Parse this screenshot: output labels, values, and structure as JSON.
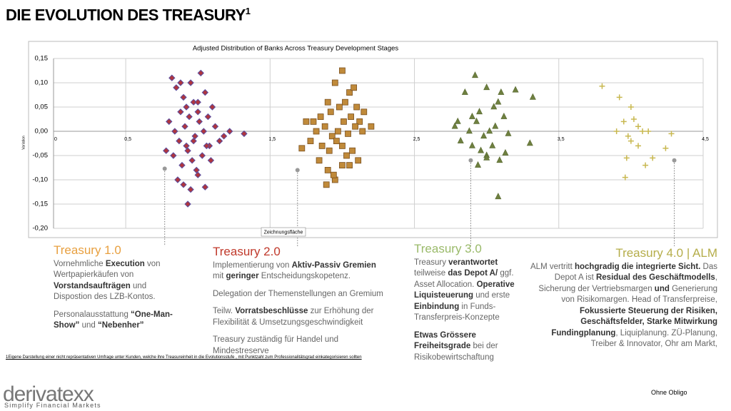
{
  "slide_title": "DIE EVOLUTION DES TREASURY",
  "title_sup": "1",
  "chart_data": {
    "type": "scatter",
    "title": "Adjusted Distribution of Banks Across Treasury Development Stages",
    "y_label": "Variation",
    "tooltip": "Zeichnungsfläche",
    "xlim": [
      0,
      4.5
    ],
    "ylim": [
      -0.2,
      0.15
    ],
    "xticks": [
      0,
      {
        "value": 0.5,
        "label": "0,5"
      },
      {
        "value": 1.5,
        "label": "1,5"
      },
      {
        "value": 2.5,
        "label": "2,5"
      },
      {
        "value": 3.5,
        "label": "3,5"
      },
      {
        "value": 4.5,
        "label": "4,5"
      }
    ],
    "yticks": [
      {
        "value": 0.15,
        "label": "0,15"
      },
      {
        "value": 0.1,
        "label": "0,10"
      },
      {
        "value": 0.05,
        "label": "0,05"
      },
      {
        "value": 0,
        "label": "0,00"
      },
      {
        "value": -0.05,
        "label": "-0,05"
      },
      {
        "value": -0.1,
        "label": "-0,10"
      },
      {
        "value": -0.15,
        "label": "-0,15"
      },
      {
        "value": -0.2,
        "label": "-0,20"
      }
    ],
    "grid": true,
    "series": [
      {
        "marker": "diamond",
        "color": "#b0353d",
        "edge": "#5b4fa0",
        "x": [
          0.82,
          0.85,
          0.88,
          0.9,
          0.92,
          0.95,
          0.97,
          1.0,
          1.02,
          1.05,
          1.07,
          1.1,
          0.8,
          0.84,
          0.87,
          0.91,
          0.94,
          0.98,
          1.01,
          1.04,
          1.08,
          1.12,
          1.15,
          1.18,
          1.22,
          1.32,
          0.78,
          0.83,
          0.89,
          0.93,
          0.96,
          0.99,
          1.03,
          1.06,
          0.86,
          0.9,
          0.95,
          1.0,
          1.05,
          0.93,
          0.97,
          0.88,
          1.09,
          1.0,
          0.92
        ],
        "values": [
          0.11,
          0.09,
          0.1,
          0.07,
          0.05,
          0.1,
          0.06,
          0.04,
          0.12,
          0.08,
          0.03,
          0.05,
          0.02,
          0.0,
          -0.02,
          0.01,
          0.03,
          -0.01,
          0.02,
          0.0,
          -0.03,
          0.01,
          -0.02,
          -0.01,
          0.0,
          -0.005,
          -0.04,
          -0.05,
          -0.07,
          -0.04,
          -0.06,
          -0.08,
          -0.05,
          -0.03,
          -0.1,
          -0.11,
          -0.12,
          -0.09,
          -0.115,
          -0.15,
          -0.02,
          0.04,
          -0.06,
          0.06,
          -0.03
        ]
      },
      {
        "marker": "square",
        "color": "#c08a3a",
        "edge": "#7a5020",
        "x": [
          1.8,
          1.9,
          1.95,
          2.0,
          2.05,
          2.08,
          2.1,
          1.85,
          1.92,
          1.98,
          2.02,
          2.06,
          2.12,
          2.15,
          1.75,
          1.82,
          1.88,
          1.93,
          1.97,
          2.01,
          2.04,
          2.09,
          2.14,
          2.2,
          1.72,
          1.78,
          1.86,
          1.91,
          1.96,
          2.0,
          2.03,
          2.07,
          2.11,
          1.84,
          1.9,
          1.95,
          2.0,
          2.05,
          1.89,
          1.94
        ],
        "values": [
          0.02,
          0.06,
          0.1,
          0.125,
          0.08,
          0.09,
          0.05,
          0.03,
          0.04,
          0.05,
          0.06,
          0.03,
          0.02,
          0.04,
          0.02,
          0.0,
          0.01,
          -0.01,
          0.0,
          0.02,
          -0.005,
          0.01,
          0.0,
          0.01,
          -0.035,
          -0.02,
          -0.03,
          -0.04,
          -0.02,
          -0.03,
          -0.05,
          -0.04,
          -0.06,
          -0.06,
          -0.08,
          -0.1,
          -0.07,
          -0.07,
          -0.11,
          -0.09
        ]
      },
      {
        "marker": "triangle",
        "color": "#6f8040",
        "edge": "#55662e",
        "x": [
          2.92,
          2.85,
          3.0,
          3.1,
          3.2,
          3.32,
          2.8,
          2.9,
          2.95,
          3.05,
          3.08,
          3.12,
          2.78,
          2.88,
          2.93,
          2.98,
          3.02,
          3.06,
          3.15,
          3.3,
          2.82,
          2.9,
          2.96,
          3.0,
          3.04,
          3.09,
          3.13,
          2.94,
          3.0,
          3.08
        ],
        "values": [
          0.115,
          0.08,
          0.09,
          0.08,
          0.085,
          0.07,
          0.02,
          0.03,
          0.04,
          0.05,
          0.06,
          0.03,
          0.01,
          0.0,
          0.02,
          -0.01,
          0.0,
          0.01,
          -0.005,
          -0.025,
          -0.02,
          -0.03,
          -0.04,
          -0.05,
          -0.03,
          -0.06,
          -0.045,
          -0.07,
          -0.055,
          -0.135
        ]
      },
      {
        "marker": "plus",
        "color": "#c8b850",
        "edge": "#c8b850",
        "x": [
          3.8,
          3.92,
          4.0,
          3.95,
          4.02,
          4.05,
          3.9,
          4.08,
          4.12,
          3.98,
          4.28,
          3.97,
          4.05,
          4.24,
          4.15,
          3.96,
          4.1,
          4.0
        ],
        "values": [
          0.093,
          0.07,
          0.05,
          0.02,
          0.025,
          0.01,
          0.0,
          0.0,
          0.0,
          -0.01,
          -0.005,
          -0.055,
          -0.03,
          -0.035,
          -0.055,
          -0.095,
          -0.07,
          -0.02
        ]
      }
    ],
    "markers": {
      "color": "#999999",
      "x": [
        0.77,
        1.69,
        2.89,
        4.3
      ],
      "values": [
        -0.077,
        -0.08,
        -0.06,
        -0.06
      ]
    }
  },
  "columns": [
    {
      "heading": "Treasury 1.0",
      "color": "#e8a040",
      "paragraphs": [
        [
          "Vornehmliche ",
          {
            "t": "Execution"
          },
          " von Wertpapierkäufen von ",
          {
            "t": "Vorstandsaufträgen"
          },
          " und Dispostion des LZB-Kontos."
        ],
        [
          "Personalausstattung ",
          {
            "t": "“One-Man-Show”"
          },
          " und ",
          {
            "t": "“Nebenher”"
          }
        ]
      ]
    },
    {
      "heading": "Treasury 2.0",
      "color": "#c0392b",
      "paragraphs": [
        [
          "Implementierung von ",
          {
            "t": "Aktiv-Passiv Gremien"
          },
          " mit ",
          {
            "t": "geringer"
          },
          " Entscheidungskopetenz."
        ],
        [
          "Delegation der Themenstellungen an Gremium"
        ],
        [
          "Teilw. ",
          {
            "t": "Vorratsbeschlüsse"
          },
          " zur Erhöhung der Flexibilität & Umsetzungsgeschwindigkeit"
        ],
        [
          "Treasury zuständig für Handel und Mindestreserve"
        ]
      ]
    },
    {
      "heading": "Treasury 3.0",
      "color": "#9aba6a",
      "paragraphs": [
        [
          "Treasury ",
          {
            "t": "verantwortet"
          },
          " teilweise ",
          {
            "t": "das Depot A/"
          },
          " ggf. Asset Allocation. ",
          {
            "t": "Operative Liquisteuerung"
          },
          " und erste ",
          {
            "t": "Einbindung"
          },
          " in Funds-Transferpreis-Konzepte"
        ],
        [
          {
            "t": "Etwas Grössere Freiheitsgrade"
          },
          " bei der Risikobewirtschaftung"
        ]
      ]
    },
    {
      "heading": "Treasury 4.0 | ALM",
      "color": "#b5ad4a",
      "paragraphs": [
        [
          "ALM vertritt ",
          {
            "t": "hochgradig die integrierte Sicht."
          },
          " Das Depot A ist ",
          {
            "t": "Residual des Geschäftmodells"
          },
          ", Sicherung der Vertriebsmargen ",
          {
            "t": "und"
          },
          " Generierung von Risikomargen. Head of Transferpreise, ",
          {
            "t": "Fokussierte Steuerung der Risiken, Geschäftsfelder,  Starke Mitwirkung Fundingplanung"
          },
          ", Liquiplanung. ZÜ-Planung, Treiber & Innovator, Ohr am Markt,"
        ]
      ]
    }
  ],
  "footnote": "1Eigene Darstellung einer nicht repräsentativen Umfrage unter Kunden, welche ihre Treasureinheit in die Evolutionsstufe , mit Punktzahl zum Professionalitätsgrad einkategorisieren sollten",
  "logo": "derivatexx",
  "tagline": "Simplify Financial Markets",
  "disclaimer": "Ohne Obligo"
}
